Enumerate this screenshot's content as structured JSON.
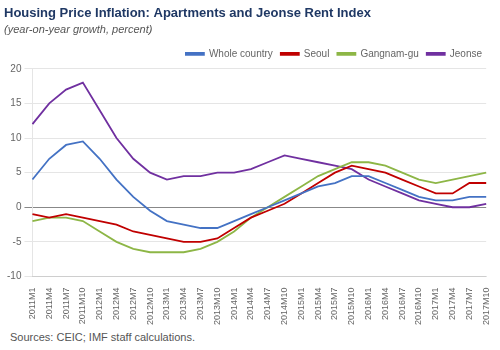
{
  "chart_data": {
    "type": "line",
    "title": "Housing Price Inflation: Apartments and Jeonse Rent Index",
    "subtitle": "(year-on-year growth, percent)",
    "source": "Sources: CEIC; IMF staff calculations.",
    "categories": [
      "2011M1",
      "2011M4",
      "2011M7",
      "2011M10",
      "2012M1",
      "2012M4",
      "2012M7",
      "2012M10",
      "2013M1",
      "2013M4",
      "2013M7",
      "2013M10",
      "2014M1",
      "2014M4",
      "2014M7",
      "2014M10",
      "2015M1",
      "2015M4",
      "2015M7",
      "2015M10",
      "2016M1",
      "2016M4",
      "2016M7",
      "2016M10",
      "2017M1",
      "2017M4",
      "2017M7",
      "2017M10"
    ],
    "series": [
      {
        "name": "Whole country",
        "color": "#4472C4",
        "values": [
          4.0,
          7.0,
          9.0,
          9.5,
          7.0,
          4.0,
          1.5,
          -0.5,
          -2.0,
          -2.5,
          -3.0,
          -3.0,
          -2.0,
          -1.0,
          0.0,
          1.0,
          2.0,
          3.0,
          3.5,
          4.5,
          4.5,
          3.5,
          2.5,
          1.5,
          1.0,
          1.0,
          1.5,
          1.5
        ]
      },
      {
        "name": "Seoul",
        "color": "#C00000",
        "values": [
          -1.0,
          -1.5,
          -1.0,
          -1.5,
          -2.0,
          -2.5,
          -3.5,
          -4.0,
          -4.5,
          -5.0,
          -5.0,
          -4.5,
          -3.0,
          -1.5,
          -0.5,
          0.5,
          2.0,
          3.5,
          5.0,
          6.0,
          5.5,
          5.0,
          4.0,
          3.0,
          2.0,
          2.0,
          3.5,
          3.5
        ]
      },
      {
        "name": "Gangnam-gu",
        "color": "#8DB646",
        "values": [
          -2.0,
          -1.5,
          -1.5,
          -2.0,
          -3.5,
          -5.0,
          -6.0,
          -6.5,
          -6.5,
          -6.5,
          -6.0,
          -5.0,
          -3.5,
          -1.5,
          0.0,
          1.5,
          3.0,
          4.5,
          5.5,
          6.5,
          6.5,
          6.0,
          5.0,
          4.0,
          3.5,
          4.0,
          4.5,
          5.0
        ]
      },
      {
        "name": "Jeonse",
        "color": "#7030A0",
        "values": [
          12.0,
          15.0,
          17.0,
          18.0,
          14.0,
          10.0,
          7.0,
          5.0,
          4.0,
          4.5,
          4.5,
          5.0,
          5.0,
          5.5,
          6.5,
          7.5,
          7.0,
          6.5,
          6.0,
          5.5,
          4.0,
          3.0,
          2.0,
          1.0,
          0.5,
          0.0,
          0.0,
          0.5
        ]
      }
    ],
    "ylim": [
      -10,
      20
    ],
    "yticks": [
      -10,
      -5,
      0,
      5,
      10,
      15,
      20
    ],
    "grid": true,
    "legend": "upper right"
  }
}
